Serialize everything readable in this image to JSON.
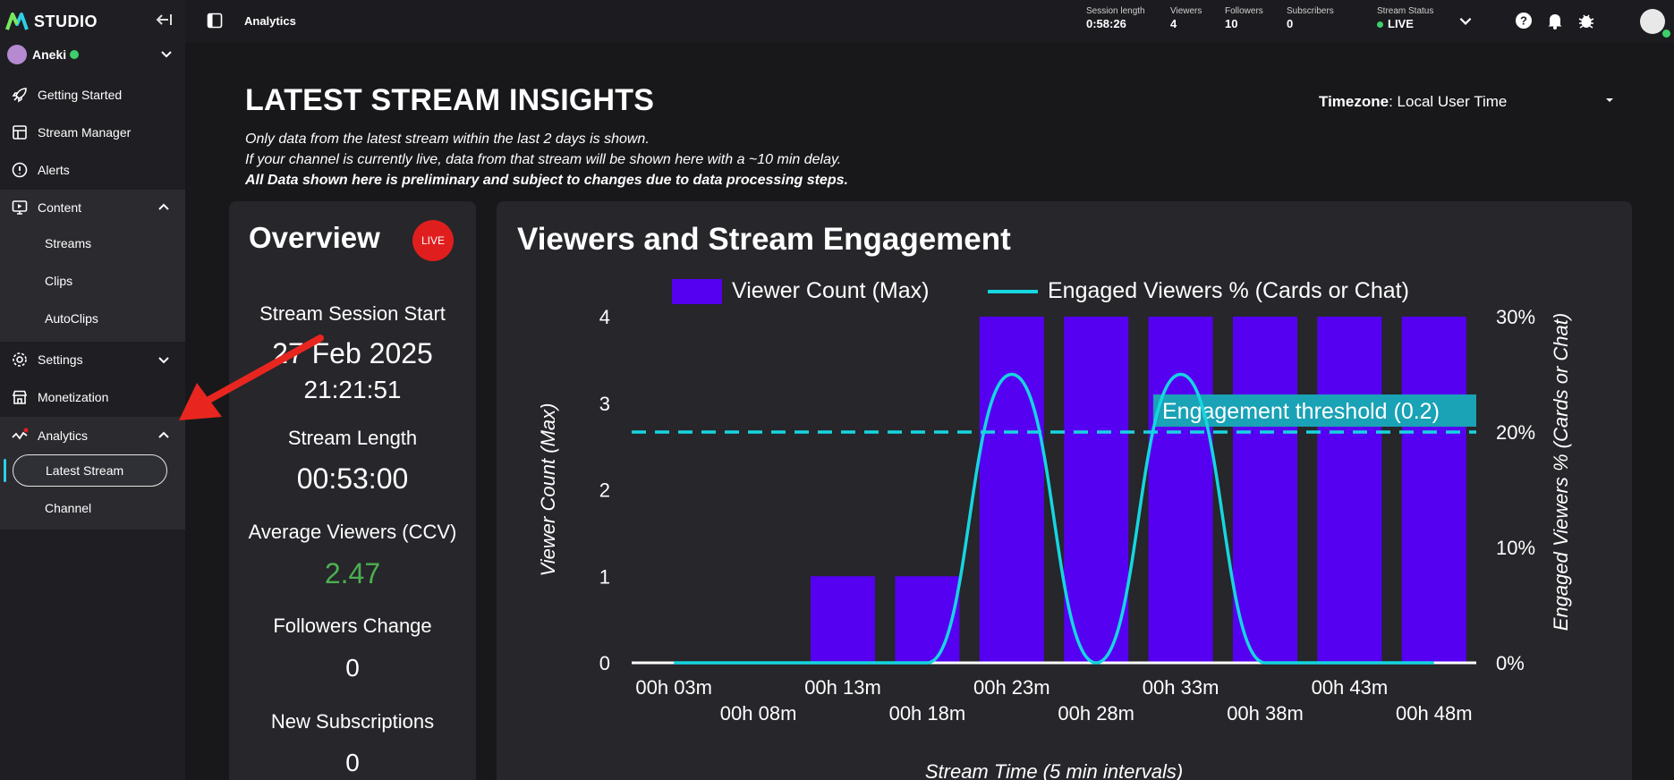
{
  "sidebar": {
    "brand": "STUDIO",
    "user": "Aneki",
    "items": [
      {
        "label": "Getting Started"
      },
      {
        "label": "Stream Manager"
      },
      {
        "label": "Alerts"
      },
      {
        "label": "Content"
      },
      {
        "label": "Settings"
      },
      {
        "label": "Monetization"
      },
      {
        "label": "Analytics"
      }
    ],
    "content_sub": [
      "Streams",
      "Clips",
      "AutoClips"
    ],
    "analytics_sub": [
      "Latest Stream",
      "Channel"
    ]
  },
  "topbar": {
    "breadcrumb": "Analytics",
    "stats": [
      {
        "label": "Session length",
        "value": "0:58:26"
      },
      {
        "label": "Viewers",
        "value": "4"
      },
      {
        "label": "Followers",
        "value": "10"
      },
      {
        "label": "Subscribers",
        "value": "0"
      }
    ],
    "stream_status_label": "Stream Status",
    "stream_status_value": "LIVE"
  },
  "main": {
    "title": "LATEST STREAM INSIGHTS",
    "timezone_label": "Timezone",
    "timezone_value": ": Local User Time",
    "notes": [
      "Only data from the latest stream within the last 2 days is shown.",
      "If your channel is currently live, data from that stream will be shown here with a ~10 min delay.",
      "All Data shown here is preliminary and subject to changes due to data processing steps."
    ]
  },
  "overview": {
    "title": "Overview",
    "badge": "LIVE",
    "session_start_label": "Stream Session Start",
    "session_start_date": "27 Feb 2025",
    "session_start_time": "21:21:51",
    "length_label": "Stream Length",
    "length_value": "00:53:00",
    "avg_viewers_label": "Average Viewers (CCV)",
    "avg_viewers_value": "2.47",
    "followers_label": "Followers Change",
    "followers_value": "0",
    "subs_label": "New Subscriptions",
    "subs_value": "0"
  },
  "chart_data": {
    "type": "bar",
    "title": "Viewers and Stream Engagement",
    "xlabel": "Stream Time (5 min intervals)",
    "ylabel": "Viewer Count (Max)",
    "y2label": "Engaged Viewers % (Cards or Chat)",
    "categories": [
      "00h 03m",
      "00h 08m",
      "00h 13m",
      "00h 18m",
      "00h 23m",
      "00h 28m",
      "00h 33m",
      "00h 38m",
      "00h 43m",
      "00h 48m"
    ],
    "ylim": [
      0,
      4
    ],
    "y2lim": [
      0,
      30
    ],
    "yticks": [
      "0",
      "1",
      "2",
      "3",
      "4"
    ],
    "y2ticks": [
      "0%",
      "10%",
      "20%",
      "30%"
    ],
    "series": [
      {
        "name": "Viewer Count (Max)",
        "type": "bar",
        "color": "#5600f2",
        "values": [
          0,
          0,
          1,
          1,
          4,
          4,
          4,
          4,
          4,
          4
        ]
      },
      {
        "name": "Engaged Viewers % (Cards or Chat)",
        "type": "line",
        "color": "#16d6e0",
        "values": [
          0,
          0,
          0,
          0,
          25,
          0,
          25,
          0,
          0,
          0
        ]
      }
    ],
    "threshold": {
      "label": "Engagement threshold (0.2)",
      "value": 20
    },
    "legend": "top"
  }
}
